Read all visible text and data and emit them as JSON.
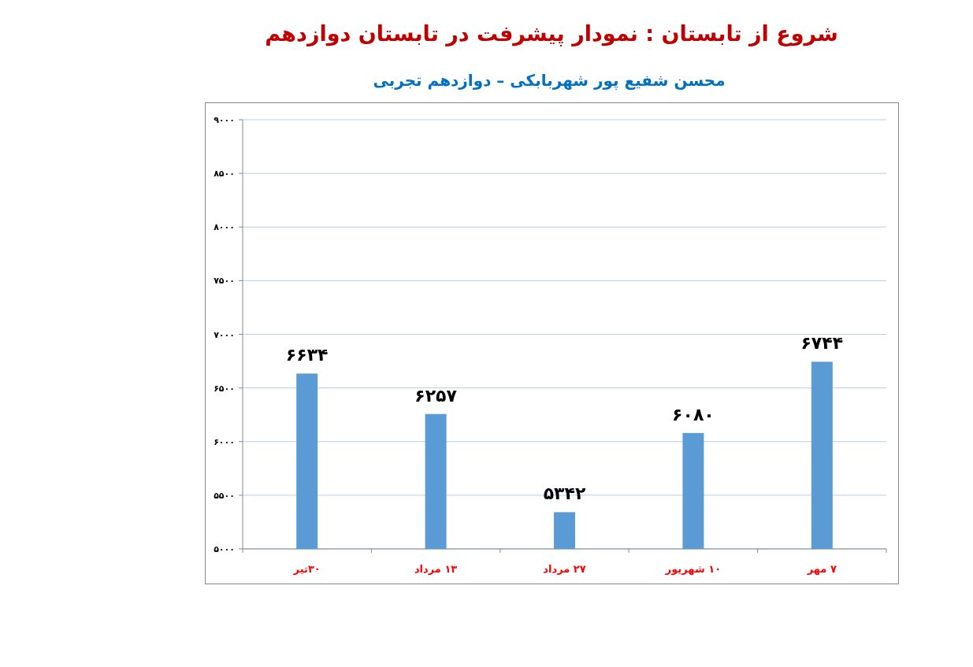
{
  "chart_data": {
    "type": "bar",
    "title": "شروع از تابستان : نمودار پیشرفت در تابستان دوازدهم",
    "subtitle": "محسن شفیع پور شهربابکی – دوازدهم تجربی",
    "categories": [
      "۳۰تیر",
      "۱۳ مرداد",
      "۲۷ مرداد",
      "۱۰ شهریور",
      "۷ مهر"
    ],
    "values": [
      6634,
      6257,
      5342,
      6080,
      6744
    ],
    "value_labels": [
      "۶۶۳۴",
      "۶۲۵۷",
      "۵۳۴۲",
      "۶۰۸۰",
      "۶۷۴۴"
    ],
    "color": "#5b9bd5",
    "ylim": [
      5000,
      9000
    ],
    "yticks": [
      {
        "value": 5000,
        "label": "۵۰۰۰"
      },
      {
        "value": 5500,
        "label": "۵۵۰۰"
      },
      {
        "value": 6000,
        "label": "۶۰۰۰"
      },
      {
        "value": 6500,
        "label": "۶۵۰۰"
      },
      {
        "value": 7000,
        "label": "۷۰۰۰"
      },
      {
        "value": 7500,
        "label": "۷۵۰۰"
      },
      {
        "value": 8000,
        "label": "۸۰۰۰"
      },
      {
        "value": 8500,
        "label": "۸۵۰۰"
      },
      {
        "value": 9000,
        "label": "۹۰۰۰"
      }
    ],
    "grid": "y"
  }
}
